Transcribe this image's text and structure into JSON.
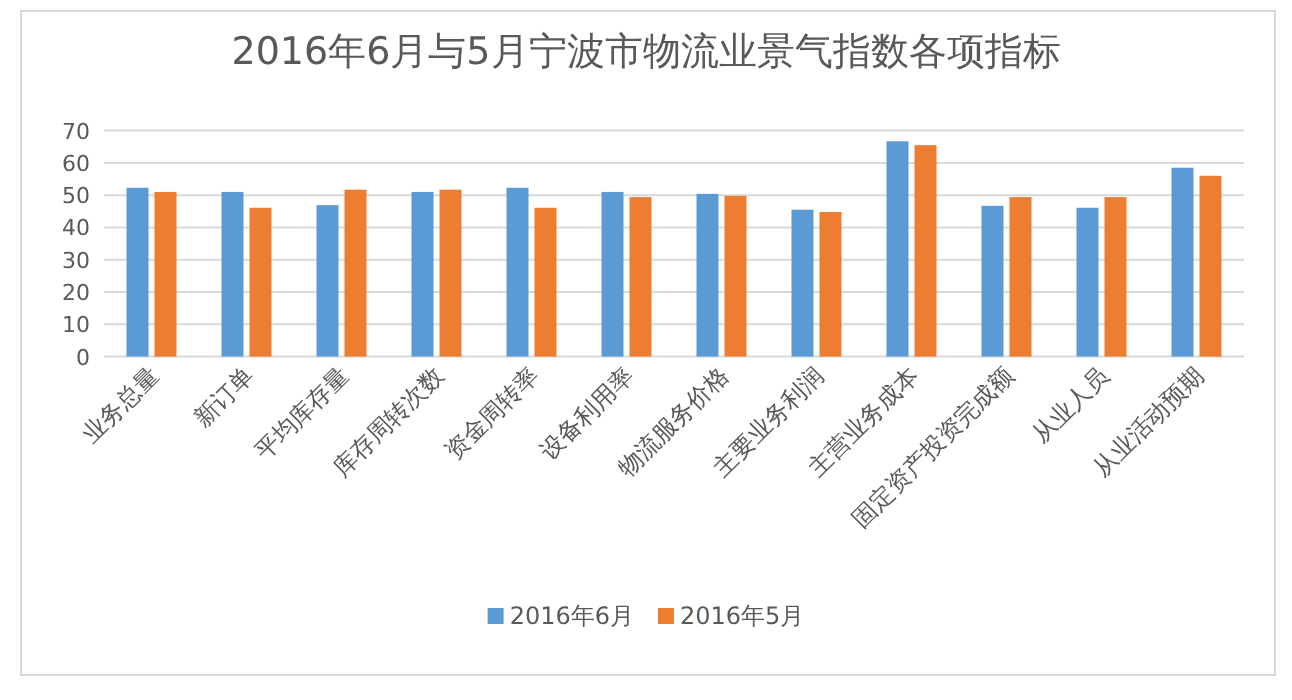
{
  "chart_data": {
    "type": "bar",
    "title": "2016年6月与5月宁波市物流业景气指数各项指标",
    "categories": [
      "业务总量",
      "新订单",
      "平均库存量",
      "库存周转次数",
      "资金周转率",
      "设备利用率",
      "物流服务价格",
      "主要业务利润",
      "主营业务成本",
      "固定资产投资完成额",
      "从业人员",
      "从业活动预期"
    ],
    "series": [
      {
        "name": "2016年6月",
        "color": "#5b9bd5",
        "values": [
          52.3,
          51.0,
          46.9,
          51.0,
          52.3,
          51.0,
          50.4,
          45.5,
          66.7,
          46.7,
          46.1,
          58.5
        ]
      },
      {
        "name": "2016年5月",
        "color": "#ed7d31",
        "values": [
          51.0,
          46.1,
          51.7,
          51.7,
          46.1,
          49.4,
          49.8,
          44.8,
          65.5,
          49.4,
          49.4,
          56.0
        ]
      }
    ],
    "ylim": [
      0,
      70
    ],
    "yticks": [
      0,
      10,
      20,
      30,
      40,
      50,
      60,
      70
    ],
    "grid": "y",
    "legend": "bottom"
  }
}
